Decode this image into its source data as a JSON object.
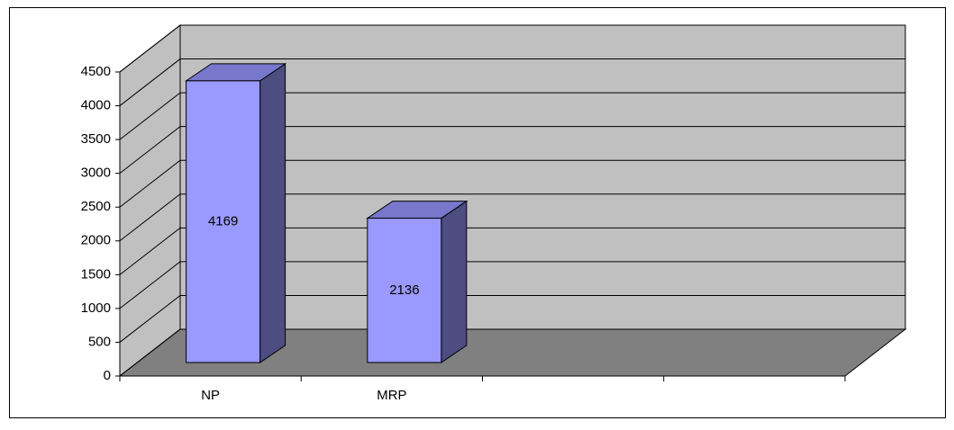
{
  "chart_data": {
    "type": "bar3d",
    "categories": [
      "NP",
      "MRP",
      null,
      null
    ],
    "values": [
      4169,
      2136,
      null,
      null
    ],
    "color": "#9999ff",
    "ylim": [
      0,
      4500
    ],
    "yticks": [
      0,
      500,
      1000,
      1500,
      2000,
      2500,
      3000,
      3500,
      4000,
      4500
    ],
    "grid": true
  }
}
